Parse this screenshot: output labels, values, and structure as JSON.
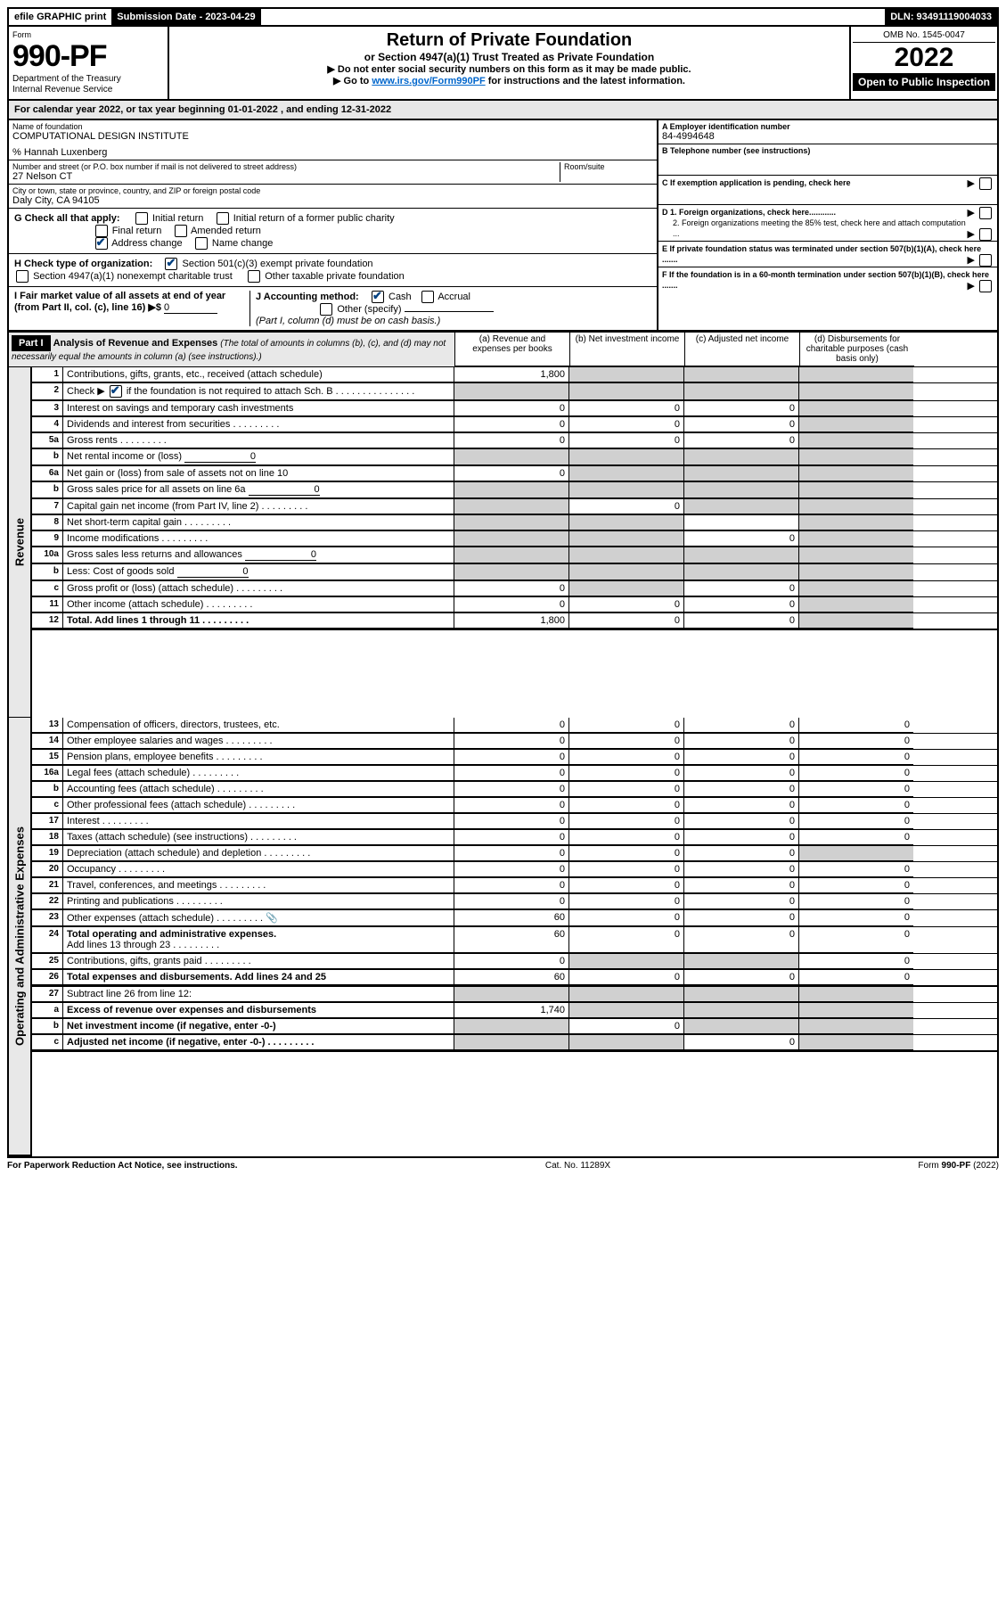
{
  "top": {
    "efile": "efile GRAPHIC print",
    "submission": "Submission Date - 2023-04-29",
    "dln": "DLN: 93491119004033"
  },
  "header": {
    "form": "Form",
    "form_no": "990-PF",
    "dept1": "Department of the Treasury",
    "dept2": "Internal Revenue Service",
    "title": "Return of Private Foundation",
    "subtitle": "or Section 4947(a)(1) Trust Treated as Private Foundation",
    "inst1": "▶ Do not enter social security numbers on this form as it may be made public.",
    "inst2_pre": "▶ Go to ",
    "inst2_link": "www.irs.gov/Form990PF",
    "inst2_post": " for instructions and the latest information.",
    "omb": "OMB No. 1545-0047",
    "year": "2022",
    "inspect": "Open to Public Inspection"
  },
  "cal_year": "For calendar year 2022, or tax year beginning 01-01-2022             , and ending 12-31-2022",
  "info": {
    "name_label": "Name of foundation",
    "name": "COMPUTATIONAL DESIGN INSTITUTE",
    "care_of": "% Hannah Luxenberg",
    "street_label": "Number and street (or P.O. box number if mail is not delivered to street address)",
    "street": "27 Nelson CT",
    "room_label": "Room/suite",
    "city_label": "City or town, state or province, country, and ZIP or foreign postal code",
    "city": "Daly City, CA  94105",
    "a_label": "A Employer identification number",
    "a_val": "84-4994648",
    "b_label": "B Telephone number (see instructions)",
    "c_label": "C If exemption application is pending, check here",
    "d1_label": "D 1. Foreign organizations, check here............",
    "d2_label": "2. Foreign organizations meeting the 85% test, check here and attach computation ...",
    "e_label": "E  If private foundation status was terminated under section 507(b)(1)(A), check here .......",
    "f_label": "F  If the foundation is in a 60-month termination under section 507(b)(1)(B), check here .......",
    "g_label": "G Check all that apply:",
    "g_initial": "Initial return",
    "g_initial_former": "Initial return of a former public charity",
    "g_final": "Final return",
    "g_amended": "Amended return",
    "g_address": "Address change",
    "g_name": "Name change",
    "h_label": "H Check type of organization:",
    "h_501c3": "Section 501(c)(3) exempt private foundation",
    "h_4947": "Section 4947(a)(1) nonexempt charitable trust",
    "h_other": "Other taxable private foundation",
    "i_label": "I Fair market value of all assets at end of year (from Part II, col. (c), line 16) ▶$",
    "i_val": "0",
    "j_label": "J Accounting method:",
    "j_cash": "Cash",
    "j_accrual": "Accrual",
    "j_other": "Other (specify)",
    "j_note": "(Part I, column (d) must be on cash basis.)"
  },
  "part1": {
    "label": "Part I",
    "title": "Analysis of Revenue and Expenses",
    "title_note": "(The total of amounts in columns (b), (c), and (d) may not necessarily equal the amounts in column (a) (see instructions).)",
    "col_a": "(a)   Revenue and expenses per books",
    "col_b": "(b)   Net investment income",
    "col_c": "(c)   Adjusted net income",
    "col_d": "(d)   Disbursements for charitable purposes (cash basis only)",
    "revenue_label": "Revenue",
    "expenses_label": "Operating and Administrative Expenses"
  },
  "rows": {
    "r1": {
      "n": "1",
      "d": "Contributions, gifts, grants, etc., received (attach schedule)",
      "a": "1,800"
    },
    "r2": {
      "n": "2",
      "d": "Check ▶",
      "d2": " if the foundation is not required to attach Sch. B"
    },
    "r3": {
      "n": "3",
      "d": "Interest on savings and temporary cash investments",
      "a": "0",
      "b": "0",
      "c": "0"
    },
    "r4": {
      "n": "4",
      "d": "Dividends and interest from securities",
      "a": "0",
      "b": "0",
      "c": "0"
    },
    "r5a": {
      "n": "5a",
      "d": "Gross rents",
      "a": "0",
      "b": "0",
      "c": "0"
    },
    "r5b": {
      "n": "b",
      "d": "Net rental income or (loss)",
      "v": "0"
    },
    "r6a": {
      "n": "6a",
      "d": "Net gain or (loss) from sale of assets not on line 10",
      "a": "0"
    },
    "r6b": {
      "n": "b",
      "d": "Gross sales price for all assets on line 6a",
      "v": "0"
    },
    "r7": {
      "n": "7",
      "d": "Capital gain net income (from Part IV, line 2)",
      "b": "0"
    },
    "r8": {
      "n": "8",
      "d": "Net short-term capital gain"
    },
    "r9": {
      "n": "9",
      "d": "Income modifications",
      "c": "0"
    },
    "r10a": {
      "n": "10a",
      "d": "Gross sales less returns and allowances",
      "v": "0"
    },
    "r10b": {
      "n": "b",
      "d": "Less: Cost of goods sold",
      "v": "0"
    },
    "r10c": {
      "n": "c",
      "d": "Gross profit or (loss) (attach schedule)",
      "a": "0",
      "c": "0"
    },
    "r11": {
      "n": "11",
      "d": "Other income (attach schedule)",
      "a": "0",
      "b": "0",
      "c": "0"
    },
    "r12": {
      "n": "12",
      "d": "Total. Add lines 1 through 11",
      "a": "1,800",
      "b": "0",
      "c": "0"
    },
    "r13": {
      "n": "13",
      "d": "Compensation of officers, directors, trustees, etc.",
      "a": "0",
      "b": "0",
      "c": "0",
      "dd": "0"
    },
    "r14": {
      "n": "14",
      "d": "Other employee salaries and wages",
      "a": "0",
      "b": "0",
      "c": "0",
      "dd": "0"
    },
    "r15": {
      "n": "15",
      "d": "Pension plans, employee benefits",
      "a": "0",
      "b": "0",
      "c": "0",
      "dd": "0"
    },
    "r16a": {
      "n": "16a",
      "d": "Legal fees (attach schedule)",
      "a": "0",
      "b": "0",
      "c": "0",
      "dd": "0"
    },
    "r16b": {
      "n": "b",
      "d": "Accounting fees (attach schedule)",
      "a": "0",
      "b": "0",
      "c": "0",
      "dd": "0"
    },
    "r16c": {
      "n": "c",
      "d": "Other professional fees (attach schedule)",
      "a": "0",
      "b": "0",
      "c": "0",
      "dd": "0"
    },
    "r17": {
      "n": "17",
      "d": "Interest",
      "a": "0",
      "b": "0",
      "c": "0",
      "dd": "0"
    },
    "r18": {
      "n": "18",
      "d": "Taxes (attach schedule) (see instructions)",
      "a": "0",
      "b": "0",
      "c": "0",
      "dd": "0"
    },
    "r19": {
      "n": "19",
      "d": "Depreciation (attach schedule) and depletion",
      "a": "0",
      "b": "0",
      "c": "0"
    },
    "r20": {
      "n": "20",
      "d": "Occupancy",
      "a": "0",
      "b": "0",
      "c": "0",
      "dd": "0"
    },
    "r21": {
      "n": "21",
      "d": "Travel, conferences, and meetings",
      "a": "0",
      "b": "0",
      "c": "0",
      "dd": "0"
    },
    "r22": {
      "n": "22",
      "d": "Printing and publications",
      "a": "0",
      "b": "0",
      "c": "0",
      "dd": "0"
    },
    "r23": {
      "n": "23",
      "d": "Other expenses (attach schedule)",
      "icon": "📎",
      "a": "60",
      "b": "0",
      "c": "0",
      "dd": "0"
    },
    "r24": {
      "n": "24",
      "d": "Total operating and administrative expenses.",
      "d2": "Add lines 13 through 23",
      "a": "60",
      "b": "0",
      "c": "0",
      "dd": "0"
    },
    "r25": {
      "n": "25",
      "d": "Contributions, gifts, grants paid",
      "a": "0",
      "dd": "0"
    },
    "r26": {
      "n": "26",
      "d": "Total expenses and disbursements. Add lines 24 and 25",
      "a": "60",
      "b": "0",
      "c": "0",
      "dd": "0"
    },
    "r27": {
      "n": "27",
      "d": "Subtract line 26 from line 12:"
    },
    "r27a": {
      "n": "a",
      "d": "Excess of revenue over expenses and disbursements",
      "a": "1,740"
    },
    "r27b": {
      "n": "b",
      "d": "Net investment income (if negative, enter -0-)",
      "b": "0"
    },
    "r27c": {
      "n": "c",
      "d": "Adjusted net income (if negative, enter -0-)",
      "c": "0"
    }
  },
  "footer": {
    "left": "For Paperwork Reduction Act Notice, see instructions.",
    "center": "Cat. No. 11289X",
    "right": "Form 990-PF (2022)"
  }
}
